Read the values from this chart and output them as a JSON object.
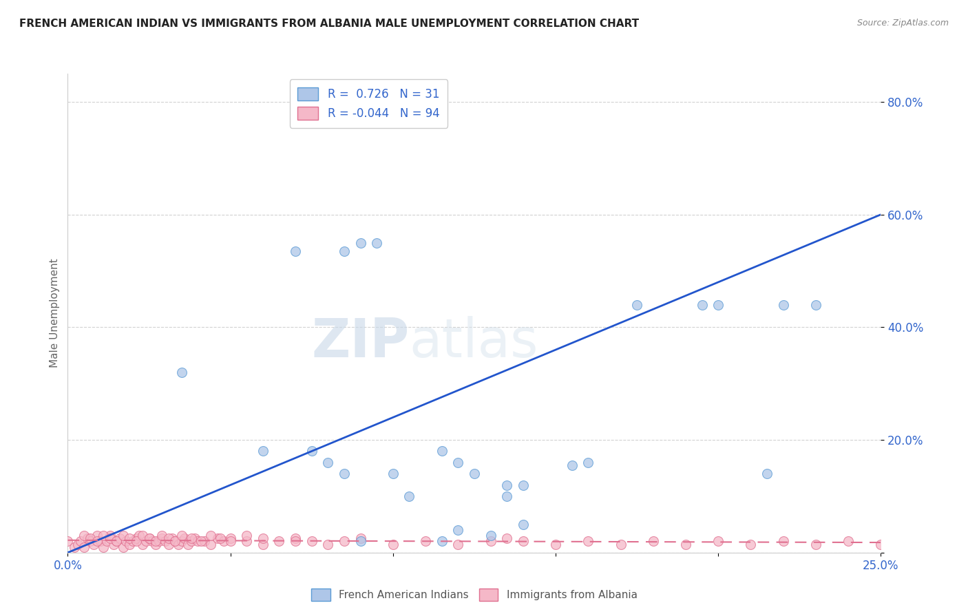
{
  "title": "FRENCH AMERICAN INDIAN VS IMMIGRANTS FROM ALBANIA MALE UNEMPLOYMENT CORRELATION CHART",
  "source": "Source: ZipAtlas.com",
  "ylabel": "Male Unemployment",
  "xlim": [
    0.0,
    0.25
  ],
  "ylim": [
    0.0,
    0.85
  ],
  "blue_r": 0.726,
  "blue_n": 31,
  "pink_r": -0.044,
  "pink_n": 94,
  "blue_fill": "#aec6e8",
  "pink_fill": "#f5b8c8",
  "blue_edge": "#5b9bd5",
  "pink_edge": "#e07090",
  "blue_line": "#2255cc",
  "pink_line": "#e07090",
  "watermark_zip": "ZIP",
  "watermark_atlas": "atlas",
  "legend_label_blue": "French American Indians",
  "legend_label_pink": "Immigrants from Albania",
  "blue_scatter_x": [
    0.035,
    0.06,
    0.075,
    0.08,
    0.085,
    0.09,
    0.1,
    0.105,
    0.115,
    0.12,
    0.125,
    0.13,
    0.135,
    0.14,
    0.155,
    0.16,
    0.22
  ],
  "blue_scatter_y": [
    0.32,
    0.18,
    0.18,
    0.16,
    0.14,
    0.02,
    0.14,
    0.1,
    0.18,
    0.16,
    0.14,
    0.03,
    0.12,
    0.05,
    0.155,
    0.16,
    0.44
  ],
  "blue_scatter_x2": [
    0.07,
    0.085,
    0.09,
    0.095,
    0.115,
    0.12,
    0.135,
    0.14,
    0.175,
    0.195,
    0.2,
    0.215,
    0.23
  ],
  "blue_scatter_y2": [
    0.535,
    0.535,
    0.55,
    0.55,
    0.02,
    0.04,
    0.1,
    0.12,
    0.44,
    0.44,
    0.44,
    0.14,
    0.44
  ],
  "pink_scatter_x": [
    0.0,
    0.002,
    0.003,
    0.004,
    0.005,
    0.006,
    0.007,
    0.008,
    0.009,
    0.01,
    0.011,
    0.012,
    0.013,
    0.014,
    0.015,
    0.016,
    0.017,
    0.018,
    0.019,
    0.02,
    0.021,
    0.022,
    0.023,
    0.024,
    0.025,
    0.026,
    0.027,
    0.028,
    0.029,
    0.03,
    0.031,
    0.032,
    0.033,
    0.034,
    0.035,
    0.036,
    0.037,
    0.038,
    0.039,
    0.04,
    0.042,
    0.044,
    0.046,
    0.048,
    0.05,
    0.055,
    0.06,
    0.065,
    0.07,
    0.075,
    0.08,
    0.085,
    0.09,
    0.1,
    0.11,
    0.12,
    0.13,
    0.135,
    0.14,
    0.15,
    0.16,
    0.17,
    0.18,
    0.19,
    0.2,
    0.21,
    0.22,
    0.23,
    0.24,
    0.25,
    0.005,
    0.007,
    0.009,
    0.011,
    0.013,
    0.015,
    0.017,
    0.019,
    0.021,
    0.023,
    0.025,
    0.027,
    0.029,
    0.031,
    0.033,
    0.035,
    0.038,
    0.041,
    0.044,
    0.047,
    0.05,
    0.055,
    0.06,
    0.07
  ],
  "pink_scatter_y": [
    0.02,
    0.01,
    0.015,
    0.02,
    0.01,
    0.025,
    0.02,
    0.015,
    0.03,
    0.02,
    0.01,
    0.02,
    0.03,
    0.015,
    0.02,
    0.025,
    0.01,
    0.02,
    0.015,
    0.02,
    0.025,
    0.03,
    0.015,
    0.02,
    0.025,
    0.02,
    0.015,
    0.02,
    0.025,
    0.02,
    0.015,
    0.025,
    0.02,
    0.015,
    0.02,
    0.025,
    0.015,
    0.02,
    0.025,
    0.02,
    0.02,
    0.015,
    0.025,
    0.02,
    0.025,
    0.02,
    0.015,
    0.02,
    0.025,
    0.02,
    0.015,
    0.02,
    0.025,
    0.015,
    0.02,
    0.015,
    0.02,
    0.025,
    0.02,
    0.015,
    0.02,
    0.015,
    0.02,
    0.015,
    0.02,
    0.015,
    0.02,
    0.015,
    0.02,
    0.015,
    0.03,
    0.025,
    0.02,
    0.03,
    0.025,
    0.02,
    0.03,
    0.025,
    0.02,
    0.03,
    0.025,
    0.02,
    0.03,
    0.025,
    0.02,
    0.03,
    0.025,
    0.02,
    0.03,
    0.025,
    0.02,
    0.03,
    0.025,
    0.02
  ]
}
